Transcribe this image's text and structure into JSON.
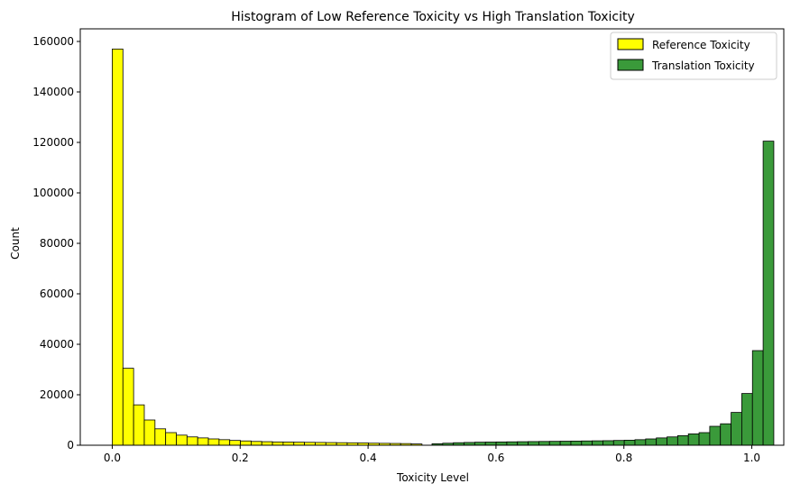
{
  "chart_data": {
    "type": "bar",
    "title": "Histogram of Low Reference Toxicity vs High Translation Toxicity",
    "xlabel": "Toxicity Level",
    "ylabel": "Count",
    "xlim": [
      -0.05,
      1.05
    ],
    "ylim": [
      0,
      165000
    ],
    "xticks": [
      0.0,
      0.2,
      0.4,
      0.6,
      0.8,
      1.0
    ],
    "xtick_labels": [
      "0.0",
      "0.2",
      "0.4",
      "0.6",
      "0.8",
      "1.0"
    ],
    "yticks": [
      0,
      20000,
      40000,
      60000,
      80000,
      100000,
      120000,
      140000,
      160000
    ],
    "ytick_labels": [
      "0",
      "20000",
      "40000",
      "60000",
      "80000",
      "100000",
      "120000",
      "140000",
      "160000"
    ],
    "grid": false,
    "legend_position": "top-right",
    "series": [
      {
        "name": "Reference Toxicity",
        "color": "#ffff00",
        "edge_color": "#000000",
        "bin_start": 0.0,
        "bin_width": 0.0167,
        "values": [
          157000,
          30500,
          16000,
          10000,
          6500,
          5000,
          4000,
          3300,
          2900,
          2500,
          2200,
          1900,
          1700,
          1500,
          1400,
          1300,
          1250,
          1200,
          1150,
          1100,
          1050,
          1000,
          950,
          900,
          800,
          750,
          700,
          650,
          500
        ]
      },
      {
        "name": "Translation Toxicity",
        "color": "#3a9a3a",
        "edge_color": "#000000",
        "bin_start": 0.5,
        "bin_width": 0.0167,
        "values": [
          600,
          800,
          1000,
          1100,
          1200,
          1250,
          1300,
          1350,
          1400,
          1450,
          1500,
          1550,
          1600,
          1650,
          1700,
          1750,
          1800,
          1900,
          2000,
          2200,
          2500,
          2900,
          3300,
          3800,
          4500,
          5000,
          7500,
          8500,
          13000,
          20500,
          37500,
          120500
        ]
      }
    ]
  }
}
